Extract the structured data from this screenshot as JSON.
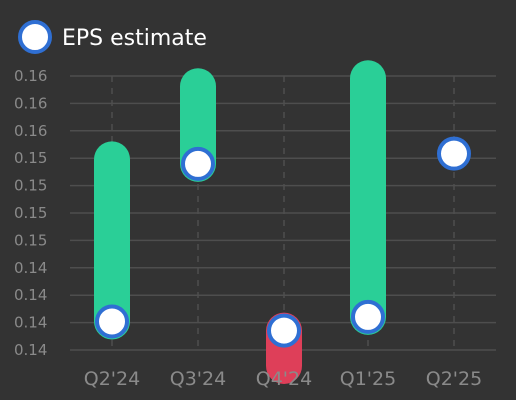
{
  "chart_data": {
    "type": "bar",
    "legend": {
      "label": "EPS estimate",
      "placement": "top-left"
    },
    "categories": [
      "Q2'24",
      "Q3'24",
      "Q4'24",
      "Q1'25",
      "Q2'25"
    ],
    "y_tick_labels": [
      "0.16",
      "0.16",
      "0.16",
      "0.15",
      "0.15",
      "0.15",
      "0.15",
      "0.14",
      "0.14",
      "0.14",
      "0.14"
    ],
    "ylim": [
      0.138,
      0.162
    ],
    "y_ticks": [
      0.162,
      0.1596,
      0.1572,
      0.1548,
      0.1524,
      0.15,
      0.1476,
      0.1452,
      0.1428,
      0.1404,
      0.138
    ],
    "grid": true,
    "estimate": [
      0.1405,
      0.1543,
      0.1397,
      0.1409,
      0.1552
    ],
    "actual": [
      0.1547,
      0.1611,
      0.1366,
      0.1618,
      null
    ],
    "colors": {
      "background": "#333333",
      "beat": "#2acf97",
      "miss": "#de3f59",
      "marker_stroke": "#2f6fd3",
      "marker_fill": "#ffffff",
      "grid": "#4e4e4e",
      "tick_text": "#8a8a8a",
      "legend_text": "#ffffff"
    }
  }
}
